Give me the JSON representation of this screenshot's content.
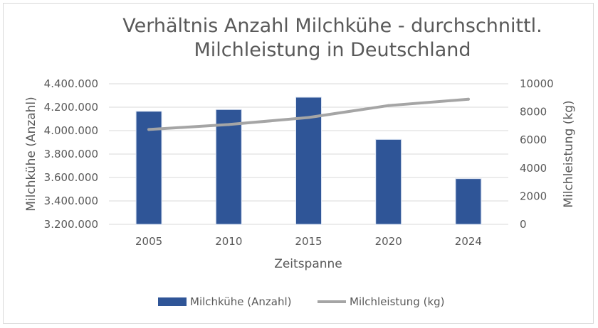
{
  "chart_data": {
    "type": "bar",
    "title_lines": [
      "Verhältnis Anzahl Milchkühe - durchschnittl.",
      "Milchleistung in Deutschland"
    ],
    "categories": [
      "2005",
      "2010",
      "2015",
      "2020",
      "2024"
    ],
    "xlabel": "Zeitspanne",
    "ylabel_left": "Milchkühe (Anzahl)",
    "ylabel_right": "Milchleistung (kg)",
    "y_left": {
      "min": 3200000,
      "max": 4400000,
      "ticks": [
        3200000,
        3400000,
        3600000,
        3800000,
        4000000,
        4200000,
        4400000
      ],
      "tick_labels": [
        "3.200.000",
        "3.400.000",
        "3.600.000",
        "3.800.000",
        "4.000.000",
        "4.200.000",
        "4.400.000"
      ]
    },
    "y_right": {
      "min": 0,
      "max": 10000,
      "ticks": [
        0,
        2000,
        4000,
        6000,
        8000,
        10000
      ],
      "tick_labels": [
        "0",
        "2000",
        "4000",
        "6000",
        "8000",
        "10000"
      ]
    },
    "series": [
      {
        "name": "Milchkühe (Anzahl)",
        "type": "bar",
        "axis": "left",
        "color": "#2f5597",
        "values": [
          4165000,
          4180000,
          4285000,
          3925000,
          3590000
        ]
      },
      {
        "name": "Milchleistung (kg)",
        "type": "line",
        "axis": "right",
        "color": "#a5a5a5",
        "values": [
          6750,
          7100,
          7600,
          8450,
          8900
        ]
      }
    ],
    "grid": true,
    "legend_position": "bottom"
  }
}
